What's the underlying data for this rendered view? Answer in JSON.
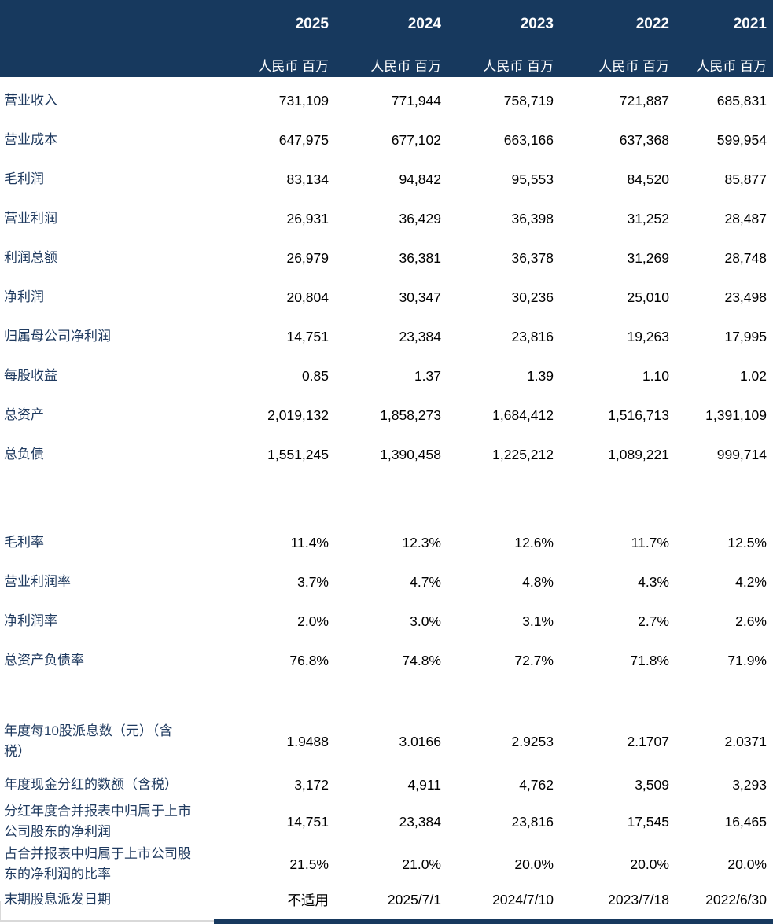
{
  "header": {
    "years": [
      "2025",
      "2024",
      "2023",
      "2022",
      "2021"
    ],
    "unit_label": "人民币 百万"
  },
  "sections": [
    {
      "name": "income-and-balance",
      "rows": [
        {
          "label": "营业收入",
          "values": [
            "731,109",
            "771,944",
            "758,719",
            "721,887",
            "685,831"
          ]
        },
        {
          "label": "营业成本",
          "values": [
            "647,975",
            "677,102",
            "663,166",
            "637,368",
            "599,954"
          ]
        },
        {
          "label": "毛利润",
          "values": [
            "83,134",
            "94,842",
            "95,553",
            "84,520",
            "85,877"
          ]
        },
        {
          "label": "营业利润",
          "values": [
            "26,931",
            "36,429",
            "36,398",
            "31,252",
            "28,487"
          ]
        },
        {
          "label": "利润总额",
          "values": [
            "26,979",
            "36,381",
            "36,378",
            "31,269",
            "28,748"
          ]
        },
        {
          "label": "净利润",
          "values": [
            "20,804",
            "30,347",
            "30,236",
            "25,010",
            "23,498"
          ]
        },
        {
          "label": "归属母公司净利润",
          "values": [
            "14,751",
            "23,384",
            "23,816",
            "19,263",
            "17,995"
          ]
        },
        {
          "label": "每股收益",
          "values": [
            "0.85",
            "1.37",
            "1.39",
            "1.10",
            "1.02"
          ]
        },
        {
          "label": "总资产",
          "values": [
            "2,019,132",
            "1,858,273",
            "1,684,412",
            "1,516,713",
            "1,391,109"
          ]
        },
        {
          "label": "总负债",
          "values": [
            "1,551,245",
            "1,390,458",
            "1,225,212",
            "1,089,221",
            "999,714"
          ]
        }
      ]
    },
    {
      "name": "ratios",
      "rows": [
        {
          "label": "毛利率",
          "values": [
            "11.4%",
            "12.3%",
            "12.6%",
            "11.7%",
            "12.5%"
          ]
        },
        {
          "label": "营业利润率",
          "values": [
            "3.7%",
            "4.7%",
            "4.8%",
            "4.3%",
            "4.2%"
          ]
        },
        {
          "label": "净利润率",
          "values": [
            "2.0%",
            "3.0%",
            "3.1%",
            "2.7%",
            "2.6%"
          ]
        },
        {
          "label": "总资产负债率",
          "values": [
            "76.8%",
            "74.8%",
            "72.7%",
            "71.8%",
            "71.9%"
          ]
        }
      ]
    },
    {
      "name": "dividends",
      "rows": [
        {
          "label": "年度每10股派息数（元）（含税）",
          "values": [
            "1.9488",
            "3.0166",
            "2.9253",
            "2.1707",
            "2.0371"
          ]
        },
        {
          "label": "年度现金分红的数额（含税）",
          "values": [
            "3,172",
            "4,911",
            "4,762",
            "3,509",
            "3,293"
          ]
        },
        {
          "label": "分红年度合并报表中归属于上市公司股东的净利润",
          "values": [
            "14,751",
            "23,384",
            "23,816",
            "17,545",
            "16,465"
          ]
        },
        {
          "label": "占合并报表中归属于上市公司股东的净利润的比率",
          "values": [
            "21.5%",
            "21.0%",
            "20.0%",
            "20.0%",
            "20.0%"
          ]
        },
        {
          "label": "末期股息派发日期",
          "values": [
            "不适用",
            "2025/7/1",
            "2024/7/10",
            "2023/7/18",
            "2022/6/30"
          ]
        }
      ]
    }
  ],
  "colors": {
    "header_bg": "#17395E",
    "header_text": "#FFFFFF",
    "label_text": "#1F3A5F",
    "number_text": "#000000",
    "grid_gray": "#D9D9D9"
  }
}
